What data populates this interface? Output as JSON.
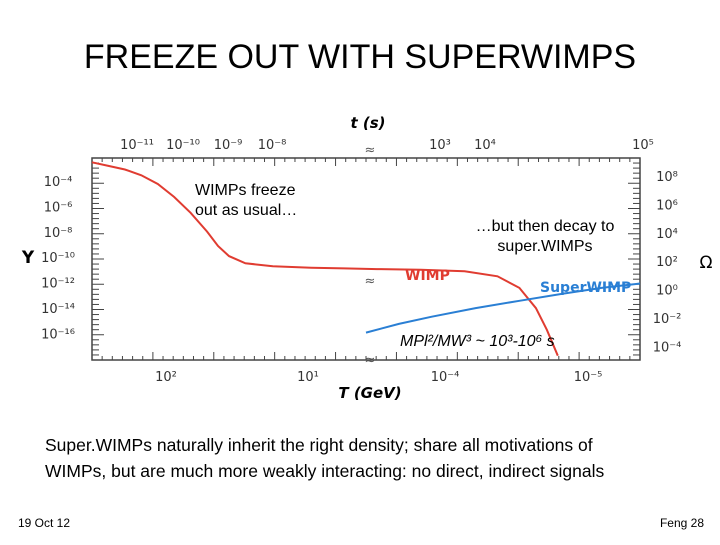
{
  "slide": {
    "title": "FREEZE OUT WITH SUPERWIMPS",
    "summary_line1": "Super.WIMPs naturally inherit the right density; share all motivations of",
    "summary_line2": "WIMPs, but are much more weakly interacting: no direct, indirect signals",
    "footer_left": "19 Oct 12",
    "footer_right": "Feng  28"
  },
  "annotations": {
    "left_line1": "WIMPs freeze",
    "left_line2": "out as usual…",
    "right_line1": "…but then decay to",
    "right_line2": "super.WIMPs",
    "formula": "MPl²/MW³ ~ 10³-10⁶ s"
  },
  "chart_data": {
    "type": "line",
    "top_axis_label": "t (s)",
    "top_axis_ticks": [
      "10⁻¹¹",
      "10⁻¹⁰",
      "10⁻⁹",
      "10⁻⁸",
      "10³",
      "10⁴",
      "10⁵"
    ],
    "bottom_axis_label": "T (GeV)",
    "bottom_axis_ticks": [
      "10²",
      "10¹",
      "10⁻⁴",
      "10⁻⁵"
    ],
    "left_axis_label": "Y",
    "left_axis_ticks": [
      "10⁻⁴",
      "10⁻⁶",
      "10⁻⁸",
      "10⁻¹⁰",
      "10⁻¹²",
      "10⁻¹⁴",
      "10⁻¹⁶"
    ],
    "right_axis_label": "Ω",
    "right_axis_ticks": [
      "10⁸",
      "10⁶",
      "10⁴",
      "10²",
      "10⁰",
      "10⁻²",
      "10⁻⁴"
    ],
    "axis_break": "≈",
    "series": [
      {
        "name": "WIMP",
        "color": "#e03c31",
        "points": [
          [
            0.0,
            -3.9
          ],
          [
            0.03,
            -4.15
          ],
          [
            0.06,
            -4.4
          ],
          [
            0.09,
            -4.8
          ],
          [
            0.12,
            -5.4
          ],
          [
            0.15,
            -6.3
          ],
          [
            0.18,
            -7.4
          ],
          [
            0.21,
            -8.7
          ],
          [
            0.23,
            -9.7
          ],
          [
            0.25,
            -10.4
          ],
          [
            0.28,
            -10.9
          ],
          [
            0.33,
            -11.1
          ],
          [
            0.4,
            -11.2
          ],
          [
            0.46,
            -11.25
          ],
          [
            0.52,
            -11.3
          ],
          [
            0.6,
            -11.35
          ],
          [
            0.68,
            -11.45
          ],
          [
            0.74,
            -11.8
          ],
          [
            0.78,
            -12.6
          ],
          [
            0.81,
            -14.0
          ],
          [
            0.83,
            -15.5
          ],
          [
            0.85,
            -17.3
          ]
        ]
      },
      {
        "name": "SuperWIMP",
        "color": "#2a7fd4",
        "points": [
          [
            0.5,
            -15.7
          ],
          [
            0.56,
            -15.1
          ],
          [
            0.62,
            -14.6
          ],
          [
            0.7,
            -14.0
          ],
          [
            0.78,
            -13.5
          ],
          [
            0.86,
            -13.0
          ],
          [
            0.93,
            -12.6
          ],
          [
            1.0,
            -12.3
          ]
        ]
      }
    ]
  }
}
